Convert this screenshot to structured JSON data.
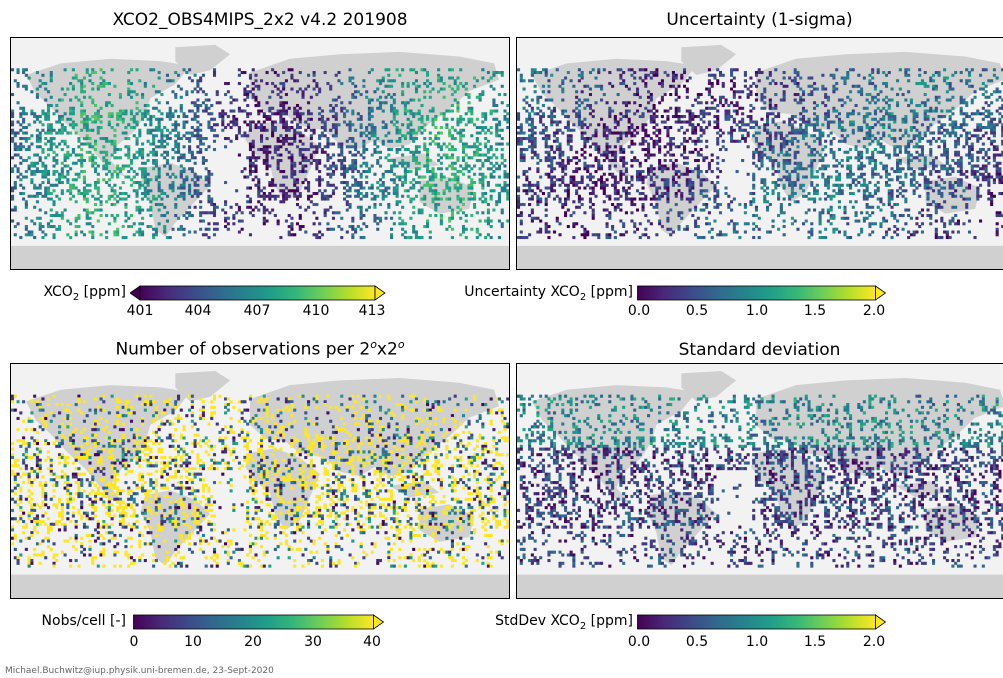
{
  "panels": [
    {
      "id": "xco2",
      "title": "XCO2_OBS4MIPS_2x2 v4.2 201908",
      "title_sup": "",
      "title_suffix": "",
      "colormap": "viridis",
      "colorbar": {
        "label_pre": "XCO",
        "label_sub": "2",
        "label_post": " [ppm]",
        "ticks": [
          "401",
          "404",
          "407",
          "410",
          "413"
        ],
        "range": [
          401,
          413
        ],
        "extend": "both"
      }
    },
    {
      "id": "uncertainty",
      "title": "Uncertainty (1-sigma)",
      "title_sup": "",
      "title_suffix": "",
      "colormap": "viridis",
      "colorbar": {
        "label_pre": "Uncertainty XCO",
        "label_sub": "2",
        "label_post": " [ppm]",
        "ticks": [
          "0.0",
          "0.5",
          "1.0",
          "1.5",
          "2.0"
        ],
        "range": [
          0,
          2
        ],
        "extend": "max"
      }
    },
    {
      "id": "nobs",
      "title": "Number of observations per 2",
      "title_sup": "o",
      "title_mid": "x2",
      "title_sup2": "o",
      "colormap": "viridis",
      "colorbar": {
        "label_pre": "Nobs/cell [-]",
        "label_sub": "",
        "label_post": "",
        "ticks": [
          "0",
          "10",
          "20",
          "30",
          "40"
        ],
        "range": [
          0,
          40
        ],
        "extend": "max"
      }
    },
    {
      "id": "stddev",
      "title": "Standard deviation",
      "title_sup": "",
      "title_suffix": "",
      "colormap": "viridis",
      "colorbar": {
        "label_pre": "StdDev XCO",
        "label_sub": "2",
        "label_post": " [ppm]",
        "ticks": [
          "0.0",
          "0.5",
          "1.0",
          "1.5",
          "2.0"
        ],
        "range": [
          0,
          2
        ],
        "extend": "max"
      }
    }
  ],
  "colors": {
    "ocean": "#f2f2f2",
    "land": "#d0d0d0"
  },
  "footer": "Michael.Buchwitz@iup.physik.uni-bremen.de, 23-Sept-2020"
}
